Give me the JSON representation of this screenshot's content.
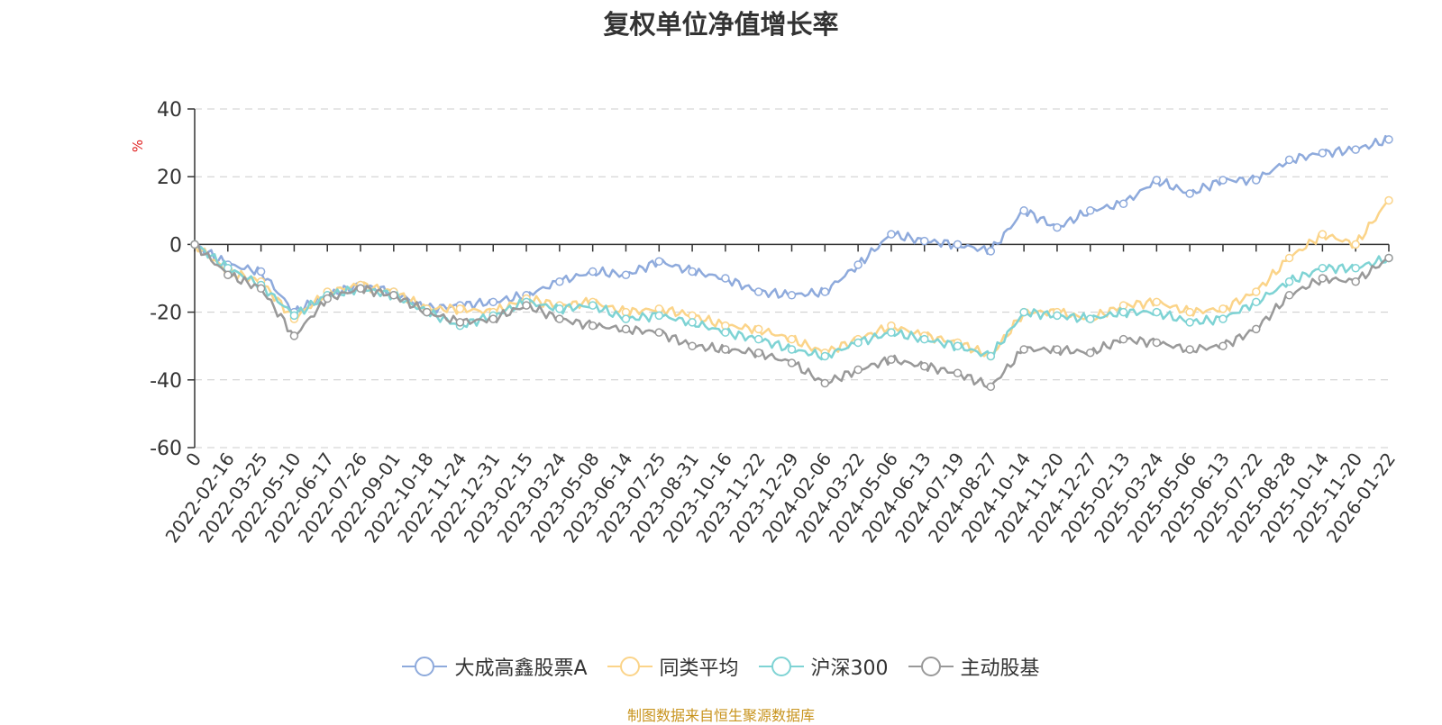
{
  "chart_data": {
    "type": "line",
    "title": "复权单位净值增长率",
    "ylabel": "%",
    "xlabel": "",
    "ylim": [
      -60,
      40
    ],
    "yticks": [
      "40",
      "20",
      "0",
      "-20",
      "-40",
      "-60"
    ],
    "categories": [
      "0",
      "2022-02-16",
      "2022-03-25",
      "2022-05-10",
      "2022-06-17",
      "2022-07-26",
      "2022-09-01",
      "2022-10-18",
      "2022-11-24",
      "2022-12-31",
      "2023-02-15",
      "2023-03-24",
      "2023-05-08",
      "2023-06-14",
      "2023-07-25",
      "2023-08-31",
      "2023-10-16",
      "2023-11-22",
      "2023-12-29",
      "2024-02-06",
      "2024-03-22",
      "2024-05-06",
      "2024-06-13",
      "2024-07-19",
      "2024-08-27",
      "2024-10-14",
      "2024-11-20",
      "2024-12-27",
      "2025-02-13",
      "2025-03-24",
      "2025-05-06",
      "2025-06-13",
      "2025-07-22",
      "2025-08-28",
      "2025-10-14",
      "2025-11-20",
      "2026-01-22"
    ],
    "grid": true,
    "legend_position": "bottom-center",
    "series": [
      {
        "name": "大成高鑫股票A",
        "color": "#8eaadc",
        "values": [
          0,
          -6,
          -8,
          -20,
          -15,
          -12,
          -14,
          -19,
          -18,
          -17,
          -15,
          -11,
          -8,
          -9,
          -5,
          -8,
          -10,
          -14,
          -15,
          -14,
          -6,
          3,
          1,
          0,
          -2,
          10,
          5,
          10,
          12,
          19,
          15,
          19,
          19,
          25,
          27,
          28,
          31
        ]
      },
      {
        "name": "同类平均",
        "color": "#fbd489",
        "values": [
          0,
          -8,
          -11,
          -22,
          -14,
          -12,
          -14,
          -19,
          -19,
          -20,
          -16,
          -18,
          -17,
          -20,
          -19,
          -21,
          -24,
          -25,
          -28,
          -32,
          -28,
          -24,
          -27,
          -29,
          -33,
          -20,
          -20,
          -22,
          -18,
          -17,
          -20,
          -19,
          -14,
          -4,
          3,
          0,
          13
        ]
      },
      {
        "name": "沪深300",
        "color": "#7ed3d4",
        "values": [
          0,
          -7,
          -12,
          -21,
          -15,
          -13,
          -15,
          -20,
          -24,
          -21,
          -17,
          -19,
          -18,
          -22,
          -21,
          -23,
          -26,
          -28,
          -31,
          -33,
          -29,
          -26,
          -28,
          -30,
          -33,
          -20,
          -21,
          -22,
          -20,
          -20,
          -23,
          -22,
          -17,
          -11,
          -7,
          -7,
          -4
        ]
      },
      {
        "name": "主动股基",
        "color": "#999999",
        "values": [
          0,
          -9,
          -13,
          -27,
          -16,
          -13,
          -15,
          -20,
          -23,
          -22,
          -18,
          -22,
          -24,
          -25,
          -26,
          -30,
          -31,
          -32,
          -35,
          -41,
          -37,
          -34,
          -36,
          -38,
          -42,
          -31,
          -31,
          -32,
          -28,
          -29,
          -31,
          -30,
          -25,
          -15,
          -10,
          -11,
          -4
        ]
      }
    ]
  },
  "source_note": "制图数据来自恒生聚源数据库"
}
